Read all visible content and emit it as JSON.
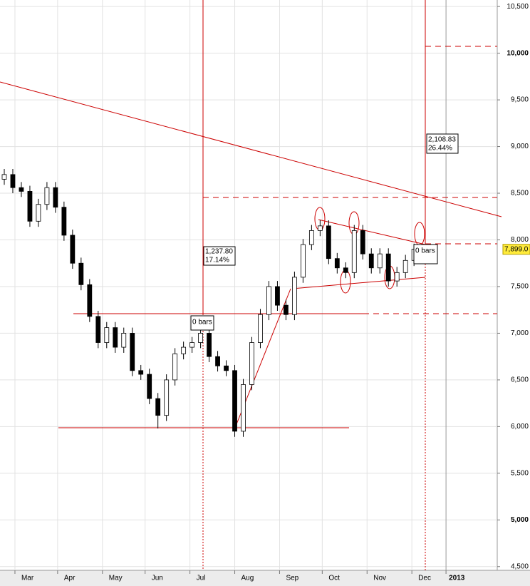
{
  "chart_data": {
    "type": "candlestick",
    "x": [
      2,
      6,
      10,
      14,
      18,
      22,
      26,
      30,
      34,
      38,
      42,
      46,
      50,
      54,
      58,
      62,
      66,
      70,
      74,
      78,
      82,
      86,
      90,
      94,
      98,
      102,
      106,
      110,
      114,
      118,
      122,
      126,
      130,
      134,
      138,
      142,
      146,
      150,
      154,
      158,
      162,
      166,
      170,
      174,
      178,
      182,
      186,
      190,
      194
    ],
    "open": [
      8650,
      8700,
      8560,
      8520,
      8200,
      8380,
      8560,
      8350,
      8050,
      7750,
      7520,
      7180,
      6900,
      7060,
      6850,
      7000,
      6600,
      6560,
      6300,
      6120,
      6500,
      6780,
      6850,
      6900,
      7000,
      6750,
      6650,
      6600,
      5950,
      6450,
      6900,
      7200,
      7500,
      7300,
      7200,
      7600,
      7950,
      8100,
      8150,
      7800,
      7700,
      7650,
      8100,
      7850,
      7700,
      7850,
      7560,
      7650,
      7780
    ],
    "high": [
      8760,
      8760,
      8620,
      8580,
      8440,
      8620,
      8620,
      8410,
      8110,
      7810,
      7580,
      7240,
      7120,
      7120,
      7060,
      7060,
      6660,
      6620,
      6360,
      6560,
      6840,
      6910,
      6960,
      7060,
      7060,
      6810,
      6710,
      6660,
      6510,
      6960,
      7260,
      7560,
      7560,
      7360,
      7660,
      8010,
      8160,
      8210,
      8210,
      7860,
      7760,
      8160,
      8160,
      7910,
      7910,
      7910,
      7710,
      7840,
      7960
    ],
    "low": [
      8590,
      8500,
      8460,
      8140,
      8140,
      8320,
      8290,
      7990,
      7690,
      7460,
      7120,
      6840,
      6840,
      6790,
      6790,
      6540,
      6500,
      6240,
      5980,
      6060,
      6440,
      6720,
      6790,
      6840,
      6690,
      6590,
      6540,
      5890,
      5890,
      6390,
      6840,
      7140,
      7240,
      7140,
      7140,
      7540,
      7890,
      8040,
      7740,
      7640,
      7590,
      7590,
      7790,
      7640,
      7640,
      7500,
      7500,
      7590,
      7720
    ],
    "close": [
      8700,
      8560,
      8520,
      8200,
      8380,
      8560,
      8350,
      8050,
      7750,
      7520,
      7180,
      6900,
      7060,
      6850,
      7000,
      6600,
      6560,
      6300,
      6120,
      6500,
      6780,
      6850,
      6900,
      7000,
      6750,
      6650,
      6600,
      5950,
      6450,
      6900,
      7200,
      7500,
      7300,
      7200,
      7600,
      7950,
      8100,
      8150,
      7800,
      7700,
      7650,
      8100,
      7850,
      7700,
      7850,
      7560,
      7650,
      7780,
      7900
    ],
    "up_color": "#ffffff",
    "down_color": "#000000",
    "xlim": [
      0,
      233
    ],
    "xticks": [
      {
        "value": 7,
        "label": "Mar"
      },
      {
        "value": 27,
        "label": "Apr"
      },
      {
        "value": 48,
        "label": "May"
      },
      {
        "value": 68,
        "label": "Jun"
      },
      {
        "value": 89,
        "label": "Jul"
      },
      {
        "value": 110,
        "label": "Aug"
      },
      {
        "value": 131,
        "label": "Sep"
      },
      {
        "value": 151,
        "label": "Oct"
      },
      {
        "value": 172,
        "label": "Nov"
      },
      {
        "value": 193,
        "label": "Dec"
      },
      {
        "value": 209,
        "label": "2013"
      }
    ],
    "ylim": [
      4460,
      10570
    ],
    "yticks": [
      {
        "value": 4500,
        "label": "4,500"
      },
      {
        "value": 5000,
        "label": "5,000",
        "bold": true
      },
      {
        "value": 5500,
        "label": "5,500"
      },
      {
        "value": 6000,
        "label": "6,000"
      },
      {
        "value": 6500,
        "label": "6,500"
      },
      {
        "value": 7000,
        "label": "7,000"
      },
      {
        "value": 7500,
        "label": "7,500"
      },
      {
        "value": 8000,
        "label": "8,000"
      },
      {
        "value": 8500,
        "label": "8,500"
      },
      {
        "value": 9000,
        "label": "9,000"
      },
      {
        "value": 9500,
        "label": "9,500"
      },
      {
        "value": 10000,
        "label": "10,000",
        "bold": true
      },
      {
        "value": 10500,
        "label": "10,500"
      }
    ],
    "grid": true,
    "last_price": {
      "value": 7899,
      "label": "7,899.0"
    },
    "annotations": [
      {
        "lines": [
          "1,237.80",
          "17.14%"
        ]
      },
      {
        "lines": [
          "2,108.83",
          "26.44%"
        ]
      },
      {
        "lines": [
          "0 bars"
        ]
      },
      {
        "lines": [
          "0 bars"
        ]
      }
    ]
  }
}
